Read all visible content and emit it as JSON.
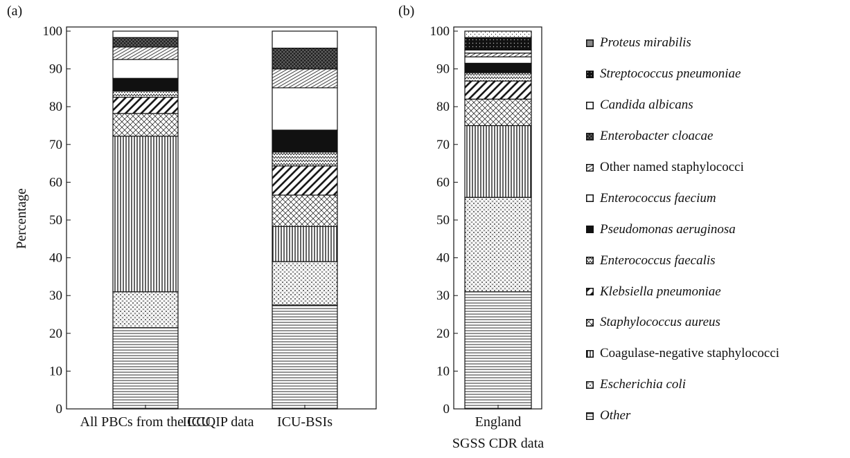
{
  "panels": [
    {
      "label": "(a)",
      "xgroup_label": "ICCQIP data"
    },
    {
      "label": "(b)",
      "xgroup_label": "SGSS CDR data"
    }
  ],
  "y_axis_label": "Percentage",
  "legend": [
    {
      "name": "Proteus mirabilis",
      "italic": true,
      "pattern": "gray"
    },
    {
      "name": "Streptococcus pneumoniae",
      "italic": true,
      "pattern": "black-dots"
    },
    {
      "name": "Candida albicans",
      "italic": true,
      "pattern": "white"
    },
    {
      "name": "Enterobacter cloacae",
      "italic": true,
      "pattern": "dark-cross"
    },
    {
      "name": "Other named staphylococci",
      "italic": false,
      "pattern": "diag-fine"
    },
    {
      "name": "Enterococcus faecium",
      "italic": true,
      "pattern": "white"
    },
    {
      "name": "Pseudomonas aeruginosa",
      "italic": true,
      "pattern": "black"
    },
    {
      "name": "Enterococcus faecalis",
      "italic": true,
      "pattern": "zigzag"
    },
    {
      "name": "Klebsiella pneumoniae",
      "italic": true,
      "pattern": "diag-bold"
    },
    {
      "name": "Staphylococcus aureus",
      "italic": true,
      "pattern": "cross"
    },
    {
      "name": "Coagulase-negative staphylococci",
      "italic": false,
      "pattern": "vlines"
    },
    {
      "name": "Escherichia coli",
      "italic": true,
      "pattern": "dots"
    },
    {
      "name": "Other",
      "italic": true,
      "pattern": "hlines"
    }
  ],
  "chart_data": [
    {
      "type": "bar",
      "stacked": true,
      "title": "",
      "xlabel": "ICCQIP data",
      "ylabel": "Percentage",
      "ylim": [
        0,
        100
      ],
      "yticks": [
        0,
        10,
        20,
        30,
        40,
        50,
        60,
        70,
        80,
        90,
        100
      ],
      "categories": [
        "All PBCs from the ICU",
        "ICU-BSIs"
      ],
      "series": [
        {
          "name": "Other",
          "values": [
            21.5,
            27.5
          ]
        },
        {
          "name": "Escherichia coli",
          "values": [
            9.5,
            11.5
          ]
        },
        {
          "name": "Coagulase-negative staphylococci",
          "values": [
            41.2,
            9.3
          ]
        },
        {
          "name": "Staphylococcus aureus",
          "values": [
            6.0,
            8.3
          ]
        },
        {
          "name": "Klebsiella pneumoniae",
          "values": [
            4.3,
            7.7
          ]
        },
        {
          "name": "Enterococcus faecalis",
          "values": [
            1.7,
            3.7
          ]
        },
        {
          "name": "Pseudomonas aeruginosa",
          "values": [
            3.3,
            5.8
          ]
        },
        {
          "name": "Enterococcus faecium",
          "values": [
            5.0,
            11.2
          ]
        },
        {
          "name": "Other named staphylococci",
          "values": [
            3.3,
            5.0
          ]
        },
        {
          "name": "Enterobacter cloacae",
          "values": [
            2.5,
            5.5
          ]
        },
        {
          "name": "Candida albicans",
          "values": [
            0.0,
            0.0
          ]
        },
        {
          "name": "Streptococcus pneumoniae",
          "values": [
            0.0,
            0.0
          ]
        },
        {
          "name": "Proteus mirabilis",
          "values": [
            1.7,
            4.5
          ]
        }
      ]
    },
    {
      "type": "bar",
      "stacked": true,
      "title": "",
      "xlabel": "SGSS CDR data",
      "ylabel": "",
      "ylim": [
        0,
        100
      ],
      "yticks": [
        0,
        10,
        20,
        30,
        40,
        50,
        60,
        70,
        80,
        90,
        100
      ],
      "categories": [
        "England"
      ],
      "series": [
        {
          "name": "Other",
          "values": [
            31.0
          ]
        },
        {
          "name": "Escherichia coli",
          "values": [
            25.0
          ]
        },
        {
          "name": "Coagulase-negative staphylococci",
          "values": [
            19.0
          ]
        },
        {
          "name": "Staphylococcus aureus",
          "values": [
            7.0
          ]
        },
        {
          "name": "Klebsiella pneumoniae",
          "values": [
            4.8
          ]
        },
        {
          "name": "Enterococcus faecalis",
          "values": [
            2.2
          ]
        },
        {
          "name": "Pseudomonas aeruginosa",
          "values": [
            2.5
          ]
        },
        {
          "name": "Enterococcus faecium",
          "values": [
            1.7
          ]
        },
        {
          "name": "Other named staphylococci",
          "values": [
            1.0
          ]
        },
        {
          "name": "Enterobacter cloacae",
          "values": [
            0.0
          ]
        },
        {
          "name": "Candida albicans",
          "values": [
            0.8
          ]
        },
        {
          "name": "Streptococcus pneumoniae",
          "values": [
            3.3
          ]
        },
        {
          "name": "Proteus mirabilis",
          "values": [
            1.7
          ]
        }
      ]
    }
  ]
}
